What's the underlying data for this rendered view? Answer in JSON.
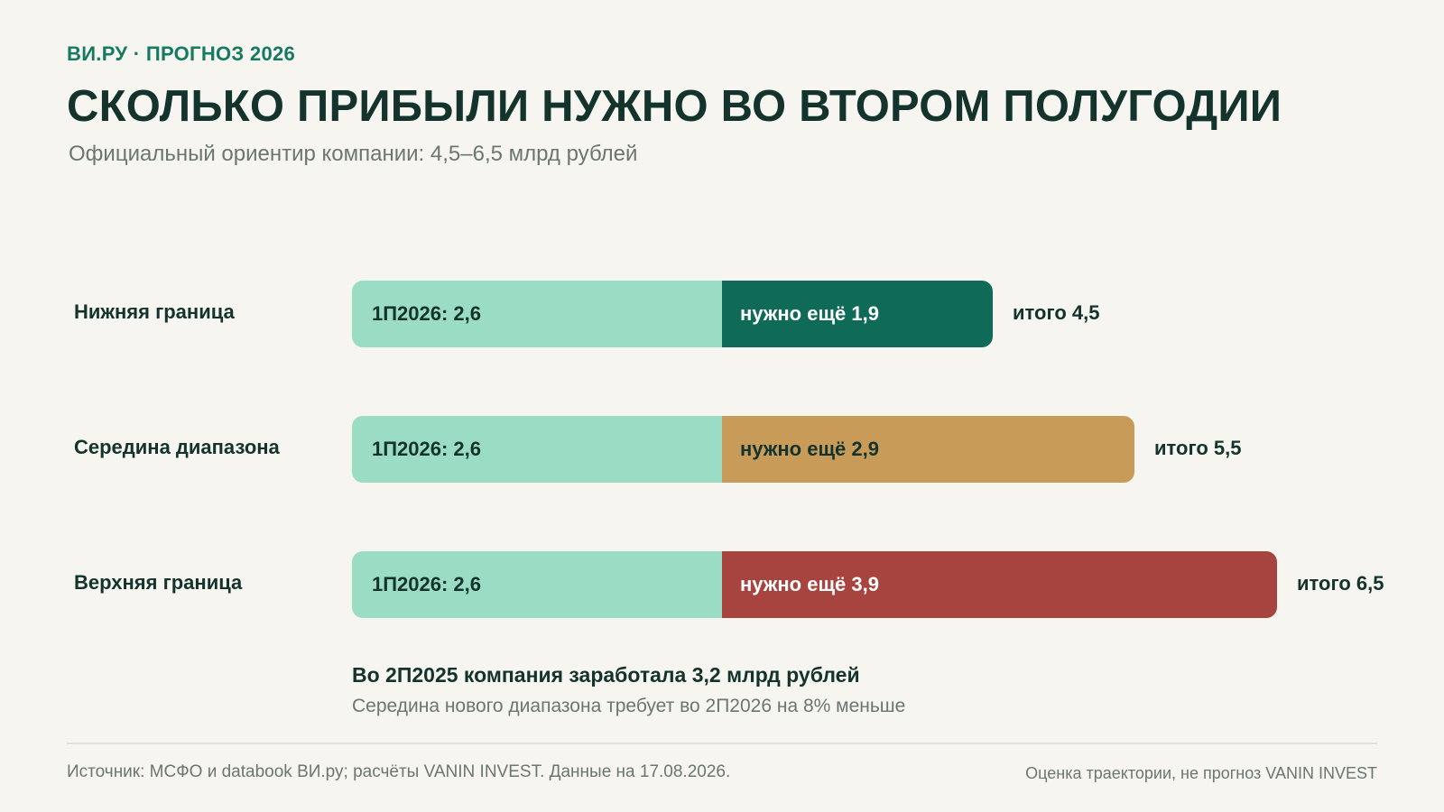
{
  "header": {
    "eyebrow": "ВИ.РУ · ПРОГНОЗ 2026",
    "title": "СКОЛЬКО ПРИБЫЛИ НУЖНО ВО ВТОРОМ ПОЛУГОДИИ",
    "subtitle": "Официальный ориентир компании: 4,5–6,5 млрд рублей"
  },
  "chart_data": {
    "type": "bar",
    "orientation": "horizontal",
    "stacked": true,
    "xlim": [
      0,
      6.5
    ],
    "categories": [
      "Нижняя граница",
      "Середина диапазона",
      "Верхняя граница"
    ],
    "series": [
      {
        "values": [
          2.6,
          2.6,
          2.6
        ],
        "colors": [
          "#9bdcc4",
          "#9bdcc4",
          "#9bdcc4"
        ]
      },
      {
        "values": [
          1.9,
          2.9,
          3.9
        ],
        "colors": [
          "#0f6b58",
          "#c89b58",
          "#a84440"
        ]
      }
    ],
    "totals": [
      4.5,
      5.5,
      6.5
    ],
    "segment_labels": [
      [
        "1П2026: 2,6",
        "нужно ещё 1,9"
      ],
      [
        "1П2026: 2,6",
        "нужно ещё 2,9"
      ],
      [
        "1П2026: 2,6",
        "нужно ещё 3,9"
      ]
    ],
    "total_labels": [
      "итого 4,5",
      "итого 5,5",
      "итого 6,5"
    ],
    "label_text_colors": [
      "#ffffff",
      "#13332c",
      "#ffffff"
    ]
  },
  "notes": {
    "main": "Во 2П2025 компания заработала 3,2 млрд рублей",
    "sub": "Середина нового диапазона требует во 2П2026 на 8% меньше"
  },
  "footer": {
    "source": "Источник: МСФО и databook ВИ.ру; расчёты VANIN INVEST. Данные на 17.08.2026.",
    "disclaimer": "Оценка траектории, не прогноз VANIN INVEST"
  }
}
